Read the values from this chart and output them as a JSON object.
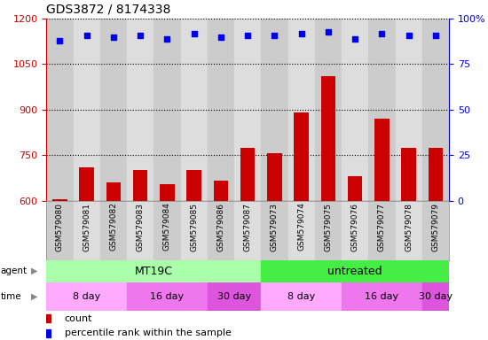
{
  "title": "GDS3872 / 8174338",
  "samples": [
    "GSM579080",
    "GSM579081",
    "GSM579082",
    "GSM579083",
    "GSM579084",
    "GSM579085",
    "GSM579086",
    "GSM579087",
    "GSM579073",
    "GSM579074",
    "GSM579075",
    "GSM579076",
    "GSM579077",
    "GSM579078",
    "GSM579079"
  ],
  "counts": [
    605,
    710,
    660,
    700,
    655,
    700,
    665,
    775,
    755,
    890,
    1010,
    680,
    870,
    775,
    775
  ],
  "percentile": [
    88,
    91,
    90,
    91,
    89,
    92,
    90,
    91,
    91,
    92,
    93,
    89,
    92,
    91,
    91
  ],
  "ylim_left": [
    600,
    1200
  ],
  "ylim_right": [
    0,
    100
  ],
  "yticks_left": [
    600,
    750,
    900,
    1050,
    1200
  ],
  "yticks_right": [
    0,
    25,
    50,
    75,
    100
  ],
  "bar_color": "#cc0000",
  "dot_color": "#0000ee",
  "agent_groups": [
    {
      "label": "MT19C",
      "start": 0,
      "end": 7,
      "color": "#aaffaa"
    },
    {
      "label": "untreated",
      "start": 8,
      "end": 14,
      "color": "#44ee44"
    }
  ],
  "time_groups": [
    {
      "label": "8 day",
      "start": 0,
      "end": 2,
      "color": "#ffaaff"
    },
    {
      "label": "16 day",
      "start": 3,
      "end": 5,
      "color": "#ee77ee"
    },
    {
      "label": "30 day",
      "start": 6,
      "end": 7,
      "color": "#dd55dd"
    },
    {
      "label": "8 day",
      "start": 8,
      "end": 10,
      "color": "#ffaaff"
    },
    {
      "label": "16 day",
      "start": 11,
      "end": 13,
      "color": "#ee77ee"
    },
    {
      "label": "30 day",
      "start": 14,
      "end": 14,
      "color": "#dd55dd"
    }
  ],
  "col_colors": [
    "#cccccc",
    "#dddddd"
  ],
  "tick_color_left": "#cc0000",
  "tick_color_right": "#0000ee"
}
